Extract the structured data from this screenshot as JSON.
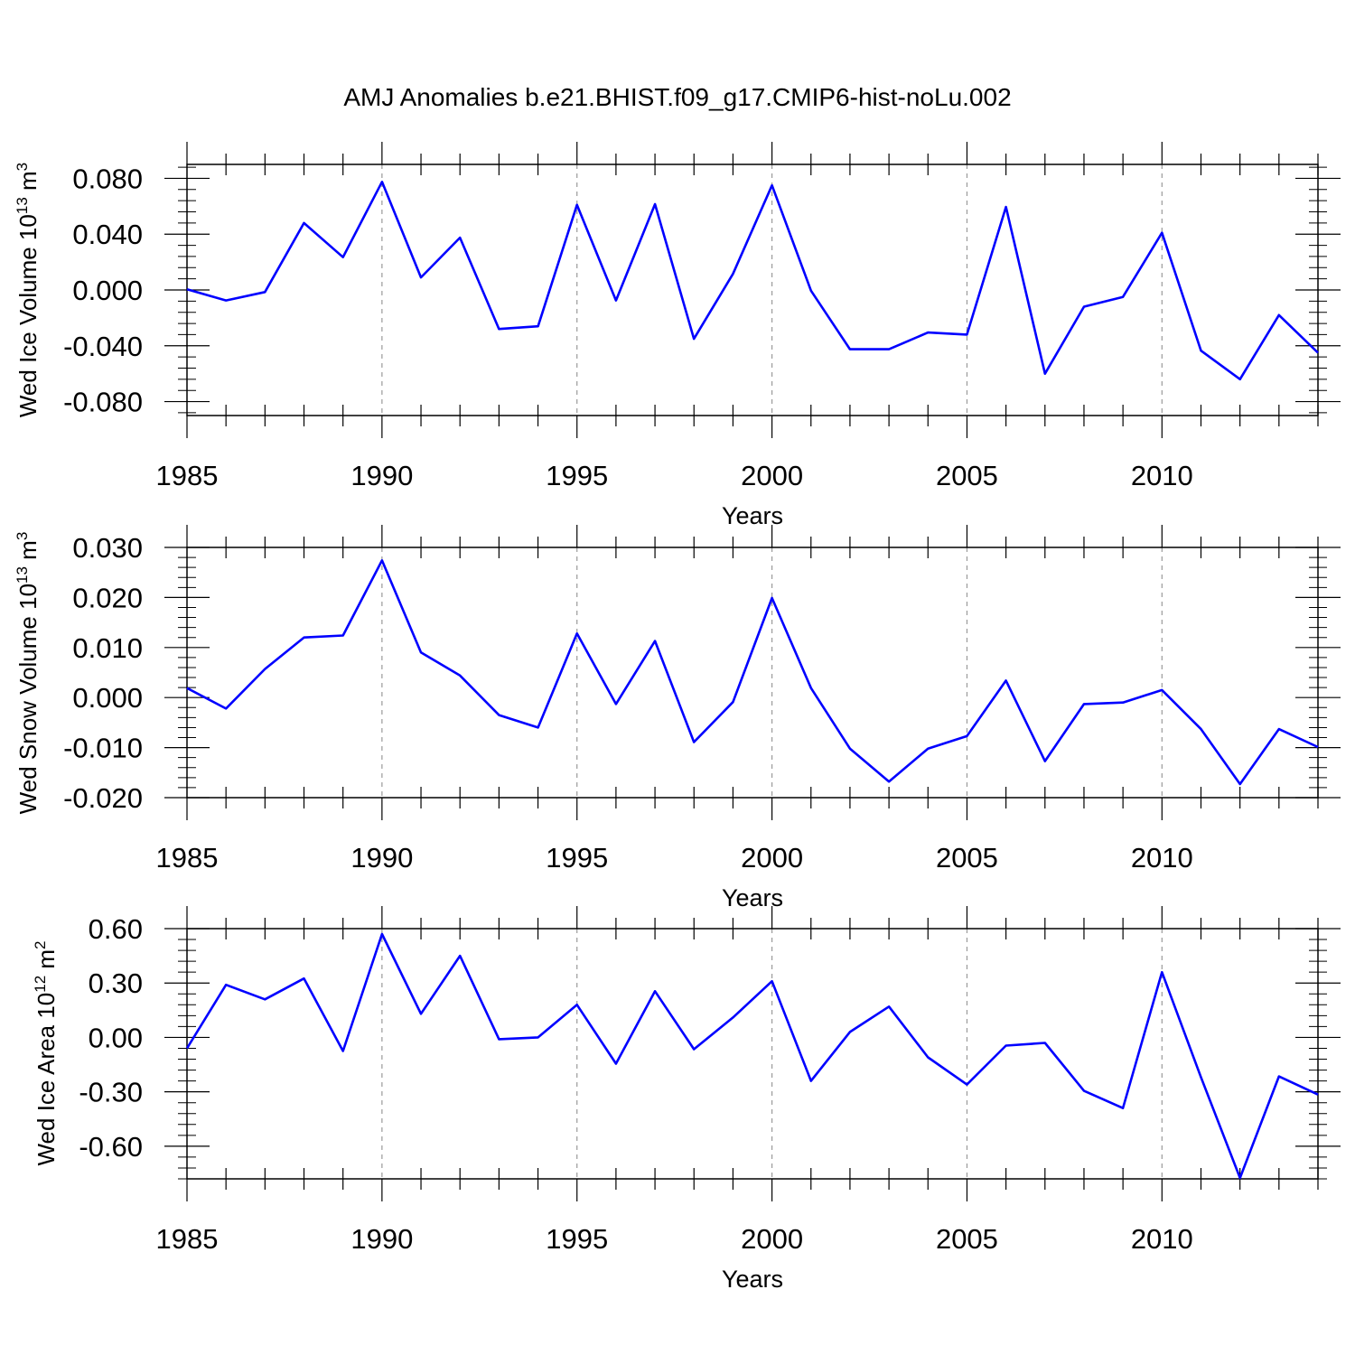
{
  "title": "AMJ Anomalies b.e21.BHIST.f09_g17.CMIP6-hist-noLu.002",
  "style": {
    "line_color": "#0000ff",
    "axis_color": "#000000",
    "grid_color": "#9a9a9a"
  },
  "chart_data": [
    {
      "type": "line",
      "ylabel_main": "Wed Ice Volume 10",
      "ylabel_exp": "13",
      "ylabel_unit": "m",
      "ylabel_unit_exp": "3",
      "xlabel": "Years",
      "xlim": [
        1985,
        2014
      ],
      "ylim": [
        -0.09,
        0.09
      ],
      "xticks": [
        1985,
        1990,
        1995,
        2000,
        2005,
        2010
      ],
      "yticks": [
        0.08,
        0.04,
        0.0,
        -0.04,
        -0.08
      ],
      "ytick_labels": [
        "0.080",
        "0.040",
        "0.000",
        "-0.040",
        "-0.080"
      ],
      "y_minor_step": 0.008,
      "x": [
        1985,
        1986,
        1987,
        1988,
        1989,
        1990,
        1991,
        1992,
        1993,
        1994,
        1995,
        1996,
        1997,
        1998,
        1999,
        2000,
        2001,
        2002,
        2003,
        2004,
        2005,
        2006,
        2007,
        2008,
        2009,
        2010,
        2011,
        2012,
        2013,
        2014
      ],
      "values": [
        0.0005,
        -0.0075,
        -0.0015,
        0.048,
        0.0235,
        0.0775,
        0.009,
        0.0375,
        -0.028,
        -0.026,
        0.061,
        -0.0075,
        0.0615,
        -0.035,
        0.0115,
        0.075,
        -0.0005,
        -0.0425,
        -0.0425,
        -0.0305,
        -0.032,
        0.0595,
        -0.06,
        -0.012,
        -0.005,
        0.041,
        -0.0435,
        -0.064,
        -0.018,
        -0.045
      ]
    },
    {
      "type": "line",
      "ylabel_main": "Wed Snow Volume 10",
      "ylabel_exp": "13",
      "ylabel_unit": "m",
      "ylabel_unit_exp": "3",
      "xlabel": "Years",
      "xlim": [
        1985,
        2014
      ],
      "ylim": [
        -0.02,
        0.03
      ],
      "xticks": [
        1985,
        1990,
        1995,
        2000,
        2005,
        2010
      ],
      "yticks": [
        0.03,
        0.02,
        0.01,
        0.0,
        -0.01,
        -0.02
      ],
      "ytick_labels": [
        "0.030",
        "0.020",
        "0.010",
        "0.000",
        "-0.010",
        "-0.020"
      ],
      "y_minor_step": 0.002,
      "x": [
        1985,
        1986,
        1987,
        1988,
        1989,
        1990,
        1991,
        1992,
        1993,
        1994,
        1995,
        1996,
        1997,
        1998,
        1999,
        2000,
        2001,
        2002,
        2003,
        2004,
        2005,
        2006,
        2007,
        2008,
        2009,
        2010,
        2011,
        2012,
        2013,
        2014
      ],
      "values": [
        0.0019,
        -0.0022,
        0.0057,
        0.012,
        0.0124,
        0.0274,
        0.009,
        0.0044,
        -0.0035,
        -0.006,
        0.0128,
        -0.0013,
        0.0113,
        -0.0089,
        -0.0009,
        0.0199,
        0.0019,
        -0.0102,
        -0.0168,
        -0.0102,
        -0.0077,
        0.0034,
        -0.0127,
        -0.0013,
        -0.001,
        0.0015,
        -0.0063,
        -0.0173,
        -0.0063,
        -0.0099
      ]
    },
    {
      "type": "line",
      "ylabel_main": "Wed Ice Area 10",
      "ylabel_exp": "12",
      "ylabel_unit": "m",
      "ylabel_unit_exp": "2",
      "xlabel": "Years",
      "xlim": [
        1985,
        2014
      ],
      "ylim": [
        -0.78,
        0.6
      ],
      "xticks": [
        1985,
        1990,
        1995,
        2000,
        2005,
        2010
      ],
      "yticks": [
        0.6,
        0.3,
        0.0,
        -0.3,
        -0.6
      ],
      "ytick_labels": [
        "0.60",
        "0.30",
        "0.00",
        "-0.30",
        "-0.60"
      ],
      "y_minor_step": 0.06,
      "x": [
        1985,
        1986,
        1987,
        1988,
        1989,
        1990,
        1991,
        1992,
        1993,
        1994,
        1995,
        1996,
        1997,
        1998,
        1999,
        2000,
        2001,
        2002,
        2003,
        2004,
        2005,
        2006,
        2007,
        2008,
        2009,
        2010,
        2011,
        2012,
        2013,
        2014
      ],
      "values": [
        -0.06,
        0.29,
        0.21,
        0.325,
        -0.075,
        0.57,
        0.13,
        0.45,
        -0.01,
        0.0,
        0.18,
        -0.145,
        0.255,
        -0.065,
        0.11,
        0.31,
        -0.24,
        0.03,
        0.17,
        -0.11,
        -0.26,
        -0.045,
        -0.03,
        -0.295,
        -0.39,
        0.36,
        -0.22,
        -0.775,
        -0.215,
        -0.315
      ]
    }
  ]
}
